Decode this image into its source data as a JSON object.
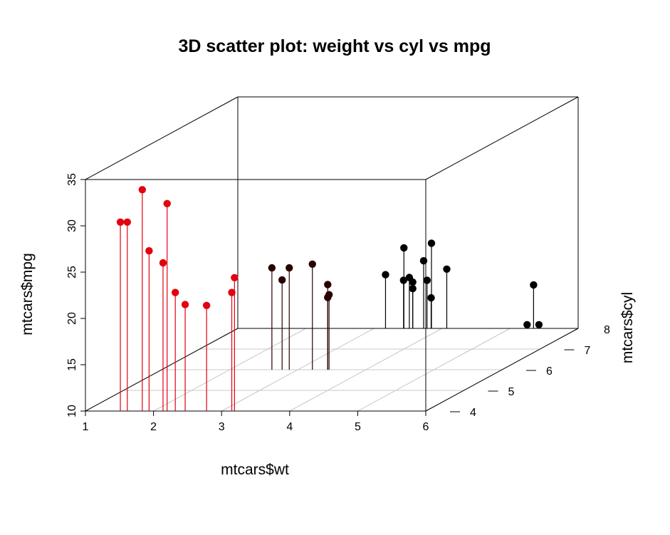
{
  "chart_data": {
    "type": "scatter",
    "title": "3D scatter plot: weight vs cyl vs mpg",
    "xlabel": "mtcars$wt",
    "ylabel": "mtcars$cyl",
    "zlabel": "mtcars$mpg",
    "xlim": [
      1,
      6
    ],
    "ylim": [
      4,
      8
    ],
    "zlim": [
      10,
      35
    ],
    "xticks": [
      "1",
      "2",
      "3",
      "4",
      "5",
      "6"
    ],
    "yticks": [
      "4",
      "5",
      "6",
      "7",
      "8"
    ],
    "zticks": [
      "10",
      "15",
      "20",
      "25",
      "30",
      "35"
    ],
    "grid": true,
    "point_style": "vertical drop lines",
    "colors": {
      "cyl4": "#e3000f",
      "cyl6": "#2a0000",
      "cyl8": "#000000",
      "grid": "#c8c8c8",
      "box": "#000000"
    },
    "points": [
      {
        "wt": 1.513,
        "cyl": 4,
        "mpg": 30.4
      },
      {
        "wt": 1.615,
        "cyl": 4,
        "mpg": 30.4
      },
      {
        "wt": 1.835,
        "cyl": 4,
        "mpg": 33.9
      },
      {
        "wt": 1.935,
        "cyl": 4,
        "mpg": 27.3
      },
      {
        "wt": 2.14,
        "cyl": 4,
        "mpg": 26.0
      },
      {
        "wt": 2.2,
        "cyl": 4,
        "mpg": 32.4
      },
      {
        "wt": 2.32,
        "cyl": 4,
        "mpg": 22.8
      },
      {
        "wt": 2.465,
        "cyl": 4,
        "mpg": 21.5
      },
      {
        "wt": 2.78,
        "cyl": 4,
        "mpg": 21.4
      },
      {
        "wt": 3.15,
        "cyl": 4,
        "mpg": 22.8
      },
      {
        "wt": 3.19,
        "cyl": 4,
        "mpg": 24.4
      },
      {
        "wt": 2.62,
        "cyl": 6,
        "mpg": 21.0
      },
      {
        "wt": 2.77,
        "cyl": 6,
        "mpg": 19.7
      },
      {
        "wt": 2.875,
        "cyl": 6,
        "mpg": 21.0
      },
      {
        "wt": 3.215,
        "cyl": 6,
        "mpg": 21.4
      },
      {
        "wt": 3.44,
        "cyl": 6,
        "mpg": 19.2
      },
      {
        "wt": 3.44,
        "cyl": 6,
        "mpg": 17.8
      },
      {
        "wt": 3.46,
        "cyl": 6,
        "mpg": 18.1
      },
      {
        "wt": 3.17,
        "cyl": 8,
        "mpg": 15.8
      },
      {
        "wt": 3.435,
        "cyl": 8,
        "mpg": 15.2
      },
      {
        "wt": 3.44,
        "cyl": 8,
        "mpg": 18.7
      },
      {
        "wt": 3.52,
        "cyl": 8,
        "mpg": 15.5
      },
      {
        "wt": 3.57,
        "cyl": 8,
        "mpg": 14.3
      },
      {
        "wt": 3.57,
        "cyl": 8,
        "mpg": 15.0
      },
      {
        "wt": 3.73,
        "cyl": 8,
        "mpg": 17.3
      },
      {
        "wt": 3.78,
        "cyl": 8,
        "mpg": 15.2
      },
      {
        "wt": 3.84,
        "cyl": 8,
        "mpg": 13.3
      },
      {
        "wt": 3.845,
        "cyl": 8,
        "mpg": 19.2
      },
      {
        "wt": 4.07,
        "cyl": 8,
        "mpg": 16.4
      },
      {
        "wt": 5.25,
        "cyl": 8,
        "mpg": 10.4
      },
      {
        "wt": 5.345,
        "cyl": 8,
        "mpg": 14.7
      },
      {
        "wt": 5.424,
        "cyl": 8,
        "mpg": 10.4
      }
    ]
  }
}
